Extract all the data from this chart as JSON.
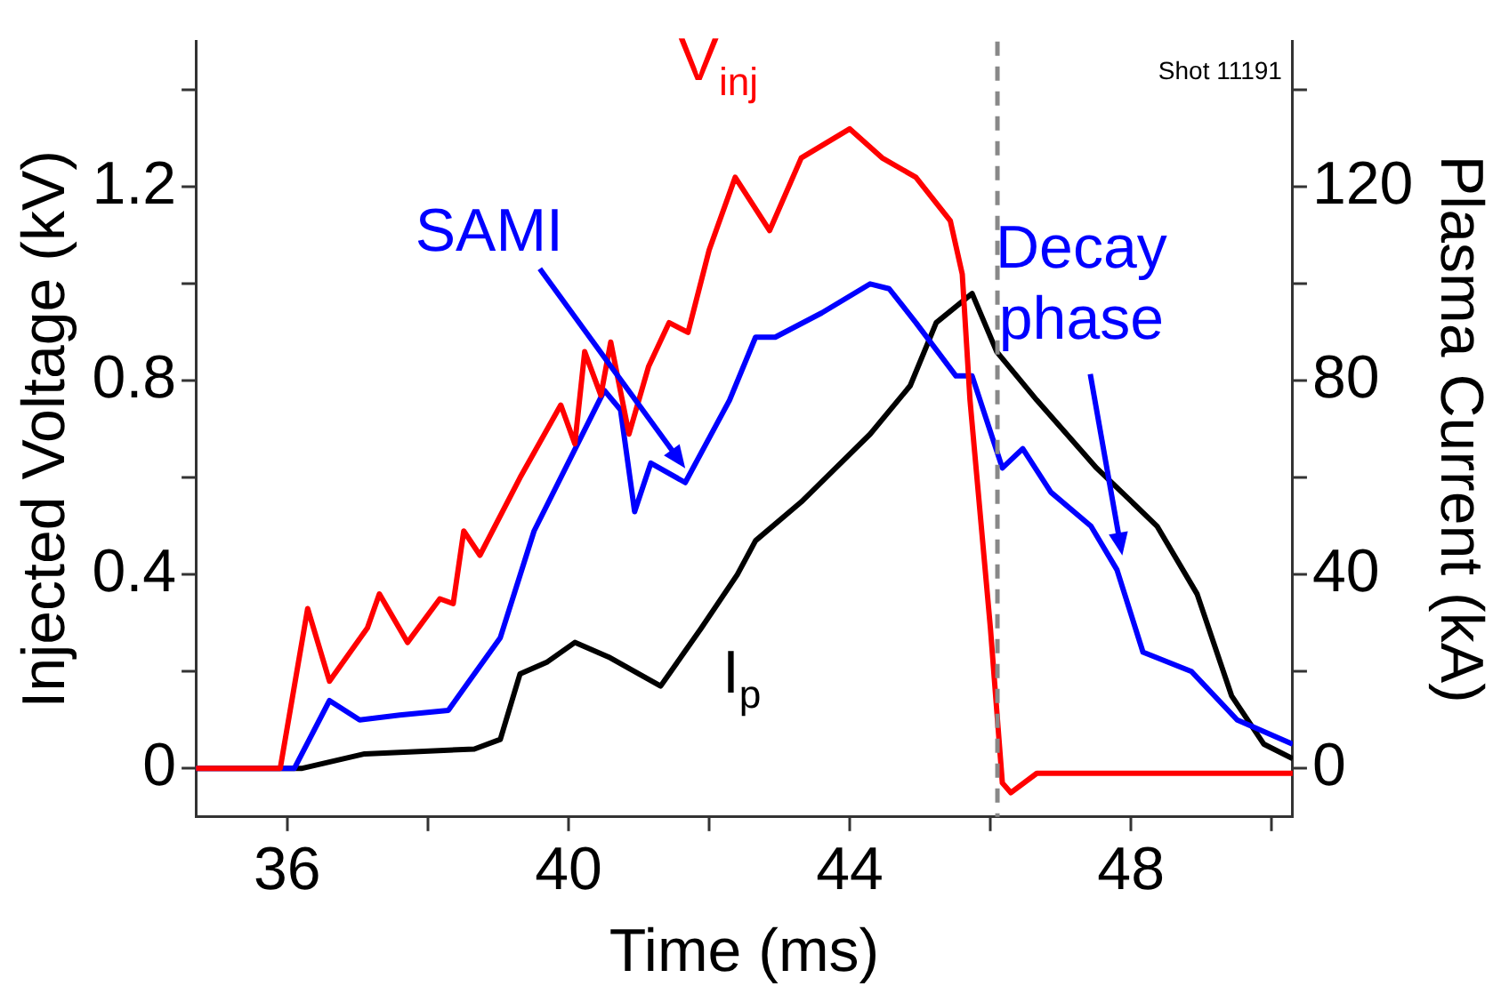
{
  "chart_data": {
    "type": "line",
    "xlabel": "Time (ms)",
    "ylabel": "Injected Voltage (kV)",
    "y2label": "Plasma Current (kA)",
    "xlim": [
      34.7,
      50.3
    ],
    "xticks": [
      36,
      {
        "value": 38,
        "label": null
      },
      40,
      {
        "value": 42,
        "label": null
      },
      44,
      {
        "value": 46,
        "label": null
      },
      48,
      {
        "value": 50,
        "label": null
      }
    ],
    "ylim": [
      -0.1,
      1.5
    ],
    "yticks": [
      0,
      {
        "value": 0.2,
        "label": null
      },
      0.4,
      {
        "value": 0.6,
        "label": null
      },
      0.8,
      {
        "value": 1.0,
        "label": null
      },
      1.2,
      {
        "value": 1.4,
        "label": null
      }
    ],
    "y2lim": [
      -10,
      150
    ],
    "y2ticks": [
      0,
      {
        "value": 20,
        "label": null
      },
      40,
      {
        "value": 60,
        "label": null
      },
      80,
      {
        "value": 100,
        "label": null
      },
      120,
      {
        "value": 140,
        "label": null
      }
    ],
    "grid": false,
    "legend": false,
    "marker": "none",
    "line_style": "solid",
    "series": [
      {
        "name": "V$_{inj}$",
        "color": "#ff0000",
        "x": [
          34.7,
          35.9,
          36.29,
          36.6,
          37.14,
          37.31,
          37.71,
          38.17,
          38.36,
          38.51,
          38.74,
          39.31,
          39.89,
          40.09,
          40.23,
          40.46,
          40.6,
          40.86,
          41.14,
          41.43,
          41.7,
          42.0,
          42.37,
          42.86,
          43.31,
          44.0,
          44.46,
          44.94,
          45.43,
          45.6,
          45.71,
          46.0,
          46.17,
          46.29,
          46.66,
          50.3
        ],
        "values": [
          0,
          0,
          0.33,
          0.18,
          0.29,
          0.36,
          0.26,
          0.35,
          0.34,
          0.49,
          0.44,
          0.6,
          0.75,
          0.67,
          0.86,
          0.77,
          0.88,
          0.69,
          0.83,
          0.92,
          0.9,
          1.07,
          1.22,
          1.11,
          1.26,
          1.32,
          1.26,
          1.22,
          1.13,
          1.02,
          0.76,
          0.29,
          -0.03,
          -0.05,
          -0.01,
          -0.01
        ]
      },
      {
        "name": "SAMI",
        "color": "#0000ff",
        "x": [
          34.7,
          36.1,
          36.6,
          37.03,
          37.6,
          38.29,
          39.03,
          39.51,
          40.51,
          40.74,
          40.94,
          41.17,
          41.66,
          42.29,
          42.66,
          42.94,
          43.6,
          44.29,
          44.56,
          44.94,
          45.51,
          45.74,
          46.17,
          46.46,
          46.86,
          47.43,
          47.8,
          48.17,
          48.86,
          49.51,
          50.3
        ],
        "values": [
          0,
          0,
          0.14,
          0.1,
          0.11,
          0.12,
          0.27,
          0.49,
          0.78,
          0.74,
          0.53,
          0.63,
          0.59,
          0.76,
          0.89,
          0.89,
          0.94,
          1.0,
          0.99,
          0.92,
          0.81,
          0.81,
          0.62,
          0.66,
          0.57,
          0.5,
          0.41,
          0.24,
          0.2,
          0.1,
          0.05
        ]
      },
      {
        "name": "I$_{p}$",
        "color": "#000000",
        "axis": "y2",
        "x": [
          34.7,
          36.2,
          37.1,
          38.66,
          39.03,
          39.31,
          39.7,
          40.09,
          40.57,
          41.31,
          41.89,
          42.4,
          42.66,
          43.31,
          44.29,
          44.86,
          45.23,
          45.74,
          46.09,
          46.66,
          47.51,
          48.37,
          48.94,
          49.43,
          49.89,
          50.3
        ],
        "values": [
          0,
          0,
          3,
          4,
          6,
          19.5,
          22,
          26,
          23,
          17,
          29,
          40,
          47,
          55,
          69,
          79,
          92,
          98,
          86,
          76,
          62,
          50,
          36,
          15,
          5,
          2
        ]
      }
    ],
    "ref_lines": [
      {
        "axis": "x",
        "value": 46.1,
        "color": "#888888",
        "line_style": "dashed"
      }
    ],
    "annotations": [
      "Decay phase",
      "Shot 11191"
    ]
  }
}
